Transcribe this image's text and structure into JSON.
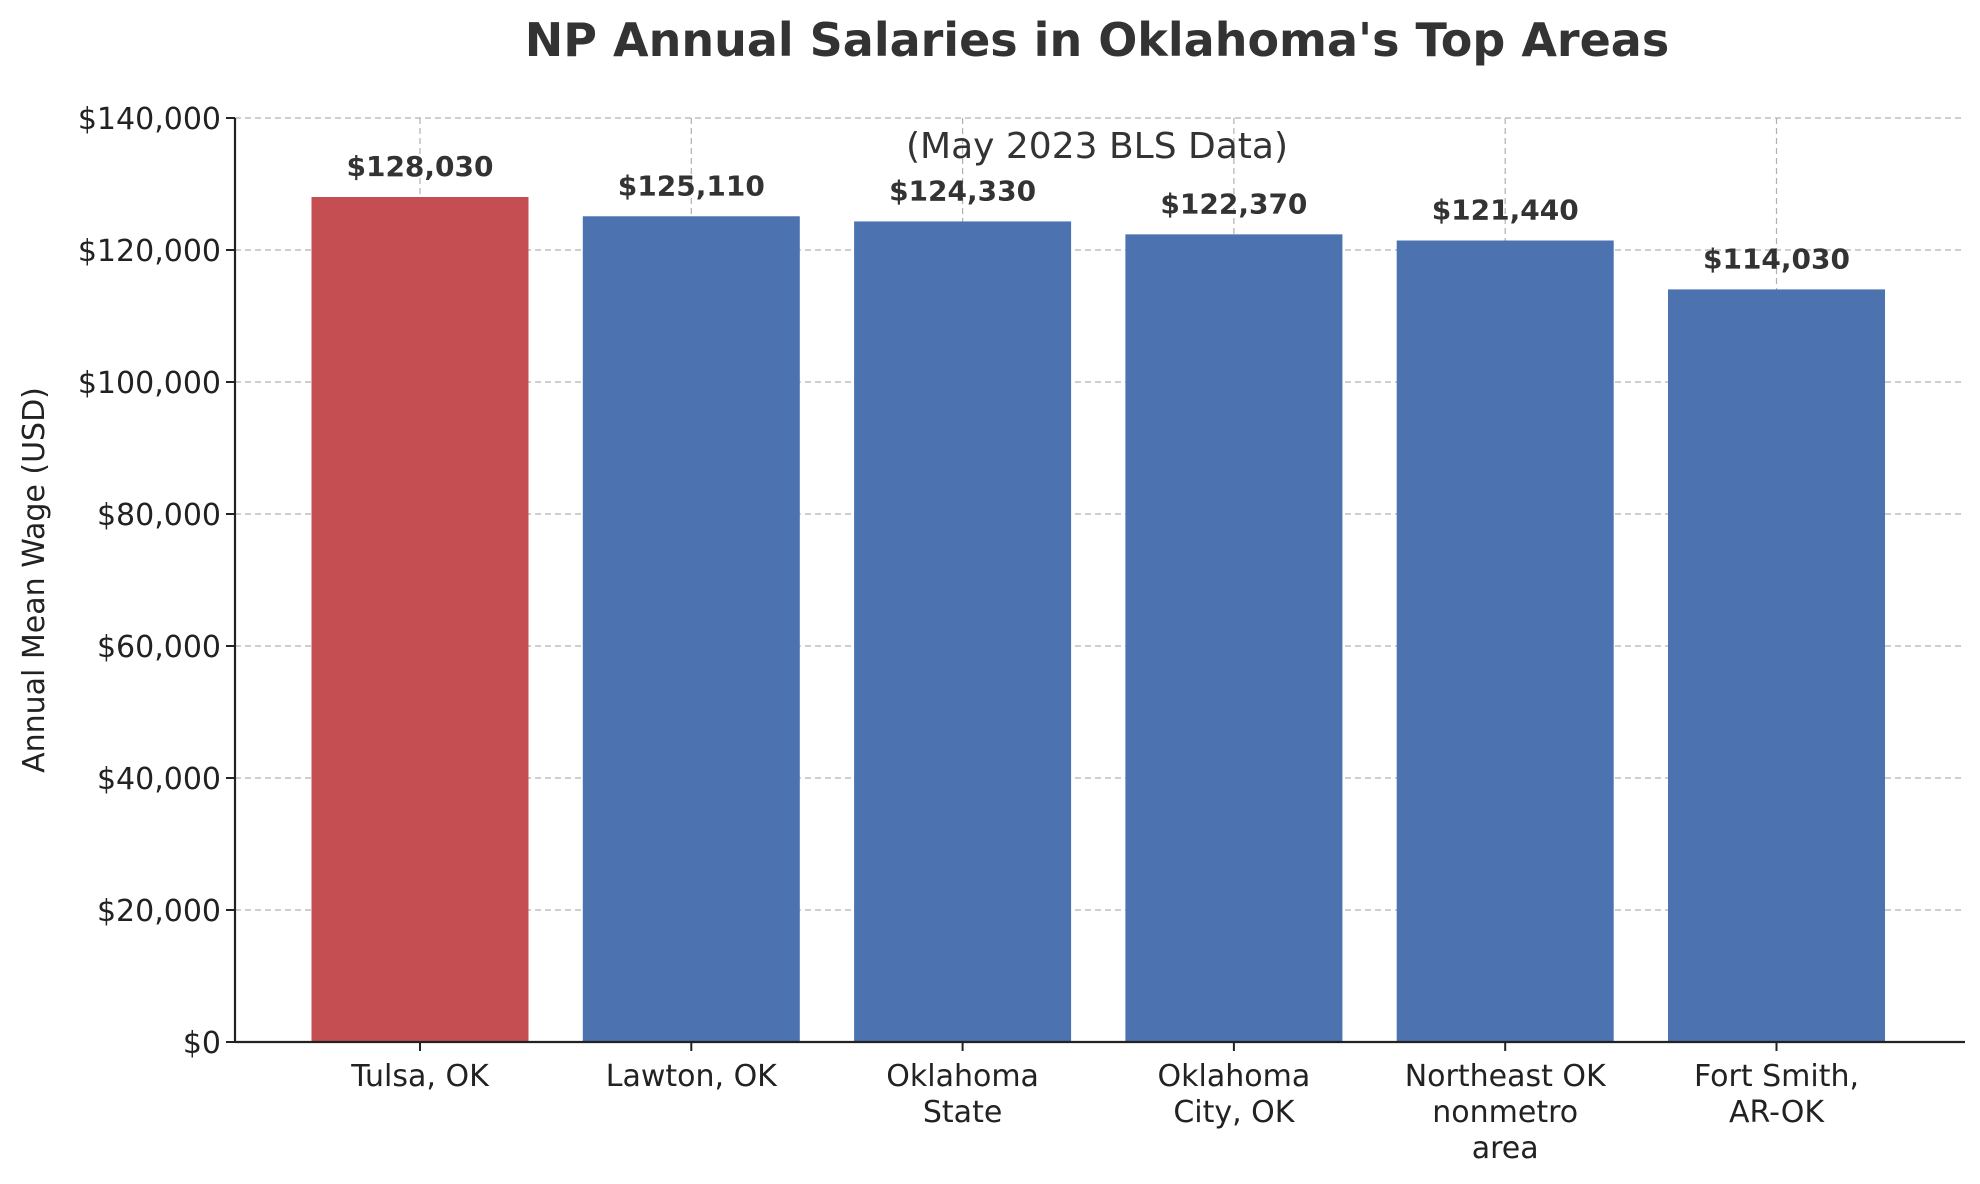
{
  "chart_data": {
    "type": "bar",
    "title": "NP Annual Salaries in Oklahoma's Top Areas",
    "subtitle": "(May 2023 BLS Data)",
    "xlabel": "",
    "ylabel": "Annual Mean Wage (USD)",
    "categories": [
      [
        "Tulsa, OK"
      ],
      [
        "Lawton, OK"
      ],
      [
        "Oklahoma",
        "State"
      ],
      [
        "Oklahoma",
        "City, OK"
      ],
      [
        "Northeast OK",
        "nonmetro",
        "area"
      ],
      [
        "Fort Smith,",
        "AR-OK"
      ]
    ],
    "values": [
      128030,
      125110,
      124330,
      122370,
      121440,
      114030
    ],
    "value_labels": [
      "$128,030",
      "$125,110",
      "$124,330",
      "$122,370",
      "$121,440",
      "$114,030"
    ],
    "bar_colors": [
      "#c44e52",
      "#4c72b0",
      "#4c72b0",
      "#4c72b0",
      "#4c72b0",
      "#4c72b0"
    ],
    "ylim": [
      0,
      140000
    ],
    "yticks": [
      0,
      20000,
      40000,
      60000,
      80000,
      100000,
      120000,
      140000
    ],
    "ytick_labels": [
      "$0",
      "$20,000",
      "$40,000",
      "$60,000",
      "$80,000",
      "$100,000",
      "$120,000",
      "$140,000"
    ],
    "grid": true,
    "grid_style": "dashed"
  }
}
